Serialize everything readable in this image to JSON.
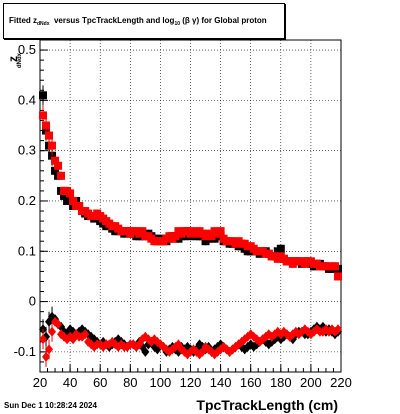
{
  "title": {
    "prefix": "Fitted  z",
    "sub1": "dNdx",
    "middle": "versus TpcTrackLength and log",
    "sub2": "10",
    "suffix": "(β  γ) for Global proton"
  },
  "yaxis_label": {
    "main": "z",
    "sub": "dNdx"
  },
  "xaxis_label": "TpcTrackLength (cm)",
  "datestamp": "Sun Dec  1 10:28:24 2024",
  "chart_data": {
    "type": "scatter",
    "title": "Fitted z_dNdx versus TpcTrackLength and log_10(β γ) for Global proton",
    "xlabel": "TpcTrackLength (cm)",
    "ylabel": "z_dNdx",
    "xlim": [
      20,
      220
    ],
    "ylim": [
      -0.14,
      0.52
    ],
    "x_ticks": [
      20,
      40,
      60,
      80,
      100,
      120,
      140,
      160,
      180,
      200,
      220
    ],
    "y_ticks": [
      -0.1,
      0,
      0.1,
      0.2,
      0.3,
      0.4,
      0.5
    ],
    "grid": true,
    "series": [
      {
        "color": "#000000",
        "marker": "square",
        "x": [
          22,
          24,
          26,
          28,
          30,
          32,
          34,
          36,
          38,
          40,
          42,
          44,
          46,
          48,
          50,
          52,
          54,
          56,
          58,
          60,
          62,
          64,
          66,
          68,
          70,
          72,
          74,
          76,
          78,
          80,
          82,
          84,
          86,
          88,
          90,
          92,
          94,
          96,
          98,
          100,
          102,
          104,
          106,
          108,
          110,
          112,
          114,
          116,
          118,
          120,
          122,
          124,
          126,
          128,
          130,
          132,
          134,
          136,
          138,
          140,
          142,
          144,
          146,
          148,
          150,
          152,
          154,
          156,
          158,
          160,
          162,
          164,
          166,
          168,
          170,
          172,
          174,
          176,
          178,
          180,
          182,
          184,
          186,
          188,
          190,
          192,
          194,
          196,
          198,
          200,
          202,
          204,
          206,
          208,
          210,
          212,
          214,
          216,
          218
        ],
        "y": [
          0.41,
          0.34,
          0.31,
          0.29,
          0.26,
          0.25,
          0.22,
          0.21,
          0.2,
          0.2,
          0.19,
          0.2,
          0.19,
          0.18,
          0.175,
          0.17,
          0.17,
          0.165,
          0.17,
          0.16,
          0.155,
          0.15,
          0.15,
          0.145,
          0.14,
          0.14,
          0.14,
          0.135,
          0.14,
          0.135,
          0.135,
          0.13,
          0.13,
          0.13,
          0.13,
          0.135,
          0.13,
          0.125,
          0.125,
          0.12,
          0.125,
          0.12,
          0.125,
          0.13,
          0.13,
          0.125,
          0.13,
          0.13,
          0.14,
          0.13,
          0.135,
          0.13,
          0.13,
          0.13,
          0.12,
          0.125,
          0.13,
          0.125,
          0.13,
          0.13,
          0.12,
          0.12,
          0.115,
          0.115,
          0.115,
          0.11,
          0.11,
          0.105,
          0.1,
          0.1,
          0.1,
          0.1,
          0.095,
          0.1,
          0.1,
          0.095,
          0.09,
          0.09,
          0.1,
          0.105,
          0.085,
          0.08,
          0.08,
          0.08,
          0.08,
          0.08,
          0.075,
          0.08,
          0.08,
          0.075,
          0.07,
          0.075,
          0.075,
          0.07,
          0.07,
          0.065,
          0.065,
          0.07,
          0.065
        ]
      },
      {
        "color": "#ff0000",
        "marker": "square",
        "x": [
          22,
          24,
          26,
          28,
          30,
          32,
          34,
          36,
          38,
          40,
          42,
          44,
          46,
          48,
          50,
          52,
          54,
          56,
          58,
          60,
          62,
          64,
          66,
          68,
          70,
          72,
          74,
          76,
          78,
          80,
          82,
          84,
          86,
          88,
          90,
          92,
          94,
          96,
          98,
          100,
          102,
          104,
          106,
          108,
          110,
          112,
          114,
          116,
          118,
          120,
          122,
          124,
          126,
          128,
          130,
          132,
          134,
          136,
          138,
          140,
          142,
          144,
          146,
          148,
          150,
          152,
          154,
          156,
          158,
          160,
          162,
          164,
          166,
          168,
          170,
          172,
          174,
          176,
          178,
          180,
          182,
          184,
          186,
          188,
          190,
          192,
          194,
          196,
          198,
          200,
          202,
          204,
          206,
          208,
          210,
          212,
          214,
          216,
          218
        ],
        "y": [
          0.37,
          0.35,
          0.33,
          0.31,
          0.28,
          0.27,
          0.25,
          0.22,
          0.22,
          0.215,
          0.2,
          0.19,
          0.19,
          0.18,
          0.18,
          0.175,
          0.17,
          0.17,
          0.175,
          0.17,
          0.165,
          0.16,
          0.155,
          0.15,
          0.15,
          0.145,
          0.14,
          0.14,
          0.14,
          0.135,
          0.14,
          0.14,
          0.135,
          0.14,
          0.13,
          0.13,
          0.125,
          0.12,
          0.12,
          0.12,
          0.12,
          0.125,
          0.13,
          0.125,
          0.13,
          0.14,
          0.135,
          0.14,
          0.14,
          0.135,
          0.14,
          0.135,
          0.14,
          0.135,
          0.13,
          0.135,
          0.13,
          0.14,
          0.135,
          0.14,
          0.125,
          0.12,
          0.12,
          0.12,
          0.115,
          0.12,
          0.115,
          0.115,
          0.11,
          0.11,
          0.105,
          0.1,
          0.1,
          0.1,
          0.095,
          0.095,
          0.09,
          0.09,
          0.085,
          0.09,
          0.085,
          0.08,
          0.08,
          0.075,
          0.08,
          0.08,
          0.08,
          0.075,
          0.08,
          0.08,
          0.075,
          0.075,
          0.07,
          0.07,
          0.07,
          0.07,
          0.07,
          0.07,
          0.05
        ]
      },
      {
        "color": "#000000",
        "marker": "diamond",
        "x": [
          22,
          24,
          26,
          28,
          30,
          32,
          34,
          36,
          38,
          40,
          42,
          44,
          46,
          48,
          50,
          52,
          54,
          56,
          58,
          60,
          62,
          64,
          66,
          68,
          70,
          72,
          74,
          76,
          78,
          80,
          82,
          84,
          86,
          88,
          90,
          92,
          94,
          96,
          98,
          100,
          102,
          104,
          106,
          108,
          110,
          112,
          114,
          116,
          118,
          120,
          122,
          124,
          126,
          128,
          130,
          132,
          134,
          136,
          138,
          140,
          142,
          144,
          146,
          148,
          150,
          152,
          154,
          156,
          158,
          160,
          162,
          164,
          166,
          168,
          170,
          172,
          174,
          176,
          178,
          180,
          182,
          184,
          186,
          188,
          190,
          192,
          194,
          196,
          198,
          200,
          202,
          204,
          206,
          208,
          210,
          212,
          214,
          216,
          218
        ],
        "y": [
          -0.055,
          -0.07,
          -0.04,
          -0.03,
          -0.035,
          -0.045,
          -0.05,
          -0.06,
          -0.065,
          -0.055,
          -0.06,
          -0.065,
          -0.06,
          -0.055,
          -0.06,
          -0.065,
          -0.07,
          -0.075,
          -0.08,
          -0.085,
          -0.08,
          -0.085,
          -0.09,
          -0.085,
          -0.08,
          -0.075,
          -0.08,
          -0.085,
          -0.09,
          -0.085,
          -0.085,
          -0.09,
          -0.08,
          -0.09,
          -0.1,
          -0.085,
          -0.08,
          -0.09,
          -0.095,
          -0.085,
          -0.09,
          -0.1,
          -0.095,
          -0.09,
          -0.095,
          -0.1,
          -0.09,
          -0.095,
          -0.09,
          -0.095,
          -0.1,
          -0.095,
          -0.085,
          -0.09,
          -0.095,
          -0.09,
          -0.1,
          -0.095,
          -0.09,
          -0.085,
          -0.09,
          -0.095,
          -0.1,
          -0.095,
          -0.09,
          -0.085,
          -0.09,
          -0.095,
          -0.09,
          -0.085,
          -0.09,
          -0.085,
          -0.08,
          -0.075,
          -0.08,
          -0.085,
          -0.08,
          -0.075,
          -0.07,
          -0.075,
          -0.07,
          -0.065,
          -0.07,
          -0.075,
          -0.065,
          -0.06,
          -0.06,
          -0.065,
          -0.065,
          -0.06,
          -0.055,
          -0.05,
          -0.055,
          -0.05,
          -0.06,
          -0.055,
          -0.06,
          -0.065,
          -0.06
        ]
      },
      {
        "color": "#ff0000",
        "marker": "diamond",
        "x": [
          22,
          24,
          26,
          28,
          30,
          32,
          34,
          36,
          38,
          40,
          42,
          44,
          46,
          48,
          50,
          52,
          54,
          56,
          58,
          60,
          62,
          64,
          66,
          68,
          70,
          72,
          74,
          76,
          78,
          80,
          82,
          84,
          86,
          88,
          90,
          92,
          94,
          96,
          98,
          100,
          102,
          104,
          106,
          108,
          110,
          112,
          114,
          116,
          118,
          120,
          122,
          124,
          126,
          128,
          130,
          132,
          134,
          136,
          138,
          140,
          142,
          144,
          146,
          148,
          150,
          152,
          154,
          156,
          158,
          160,
          162,
          164,
          166,
          168,
          170,
          172,
          174,
          176,
          178,
          180,
          182,
          184,
          186,
          188,
          190,
          192,
          194,
          196,
          198,
          200,
          202,
          204,
          206,
          208,
          210,
          212,
          214,
          216,
          218
        ],
        "y": [
          -0.075,
          -0.11,
          -0.095,
          -0.06,
          -0.04,
          -0.045,
          -0.065,
          -0.07,
          -0.075,
          -0.07,
          -0.075,
          -0.065,
          -0.07,
          -0.07,
          -0.065,
          -0.08,
          -0.085,
          -0.09,
          -0.085,
          -0.085,
          -0.09,
          -0.085,
          -0.085,
          -0.08,
          -0.085,
          -0.09,
          -0.085,
          -0.09,
          -0.09,
          -0.085,
          -0.085,
          -0.09,
          -0.085,
          -0.075,
          -0.07,
          -0.075,
          -0.08,
          -0.075,
          -0.08,
          -0.085,
          -0.09,
          -0.095,
          -0.1,
          -0.095,
          -0.09,
          -0.085,
          -0.095,
          -0.1,
          -0.105,
          -0.1,
          -0.095,
          -0.1,
          -0.105,
          -0.1,
          -0.09,
          -0.095,
          -0.1,
          -0.105,
          -0.1,
          -0.095,
          -0.09,
          -0.095,
          -0.1,
          -0.095,
          -0.09,
          -0.085,
          -0.08,
          -0.075,
          -0.07,
          -0.065,
          -0.07,
          -0.075,
          -0.08,
          -0.075,
          -0.07,
          -0.065,
          -0.07,
          -0.065,
          -0.06,
          -0.065,
          -0.06,
          -0.065,
          -0.07,
          -0.065,
          -0.06,
          -0.065,
          -0.06,
          -0.055,
          -0.06,
          -0.065,
          -0.06,
          -0.055,
          -0.06,
          -0.06,
          -0.055,
          -0.06,
          -0.055,
          -0.06,
          -0.055
        ]
      }
    ]
  }
}
